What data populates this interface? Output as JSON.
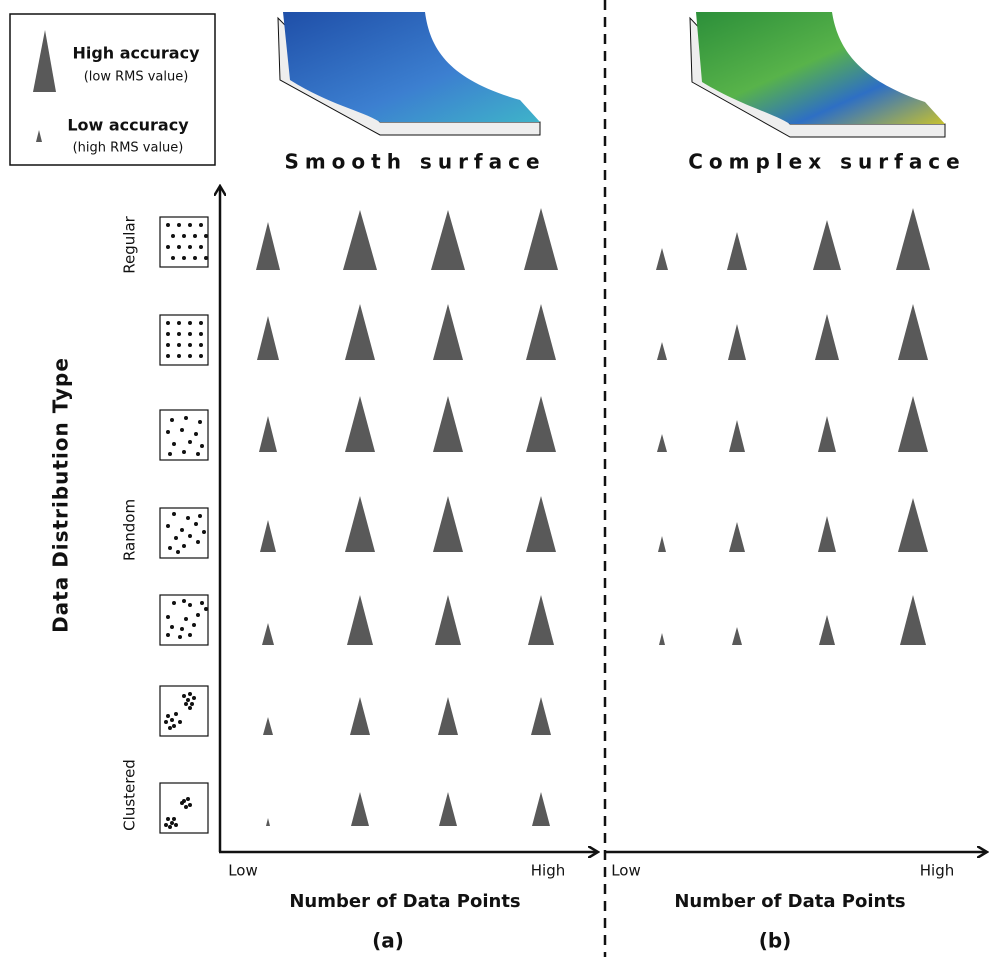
{
  "legend": {
    "high": {
      "label": "High accuracy",
      "note": "(low RMS value)"
    },
    "low": {
      "label": "Low accuracy",
      "note": "(high RMS value)"
    }
  },
  "y_axis": {
    "label": "Data Distribution Type",
    "groups": [
      "Regular",
      "Random",
      "Clustered"
    ]
  },
  "panels": [
    {
      "title": "Smooth surface",
      "x_axis": {
        "label": "Number of Data Points",
        "low": "Low",
        "high": "High"
      },
      "caption": "(a)"
    },
    {
      "title": "Complex surface",
      "x_axis": {
        "label": "Number of Data Points",
        "low": "Low",
        "high": "High"
      },
      "caption": "(b)"
    }
  ]
}
